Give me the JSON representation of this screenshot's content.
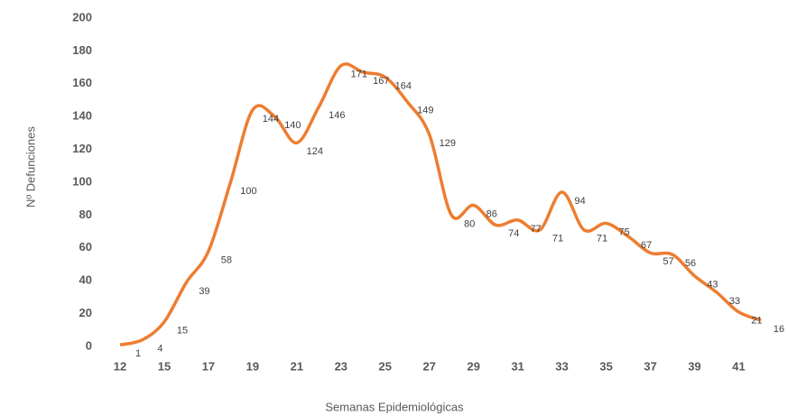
{
  "chart_data": {
    "type": "line",
    "x_label": "Semanas Epidemiológicas",
    "y_label": "Nº Defunciones",
    "categories": [
      "12",
      null,
      "15",
      null,
      "17",
      null,
      "19",
      null,
      "21",
      null,
      "23",
      null,
      "25",
      null,
      "27",
      null,
      "29",
      null,
      "31",
      null,
      "33",
      null,
      "35",
      null,
      "37",
      null,
      "39",
      null,
      "41",
      null
    ],
    "series": [
      {
        "name": "Defunciones",
        "color": "#ed7d31",
        "values": [
          1,
          4,
          15,
          39,
          58,
          100,
          144,
          140,
          124,
          146,
          171,
          167,
          164,
          149,
          129,
          80,
          86,
          74,
          77,
          71,
          94,
          71,
          75,
          67,
          57,
          56,
          43,
          33,
          21,
          16
        ]
      }
    ],
    "ylim": [
      0,
      200
    ],
    "yticks": [
      0,
      20,
      40,
      60,
      80,
      100,
      120,
      140,
      160,
      180,
      200
    ],
    "smooth": true,
    "data_labels": true
  }
}
